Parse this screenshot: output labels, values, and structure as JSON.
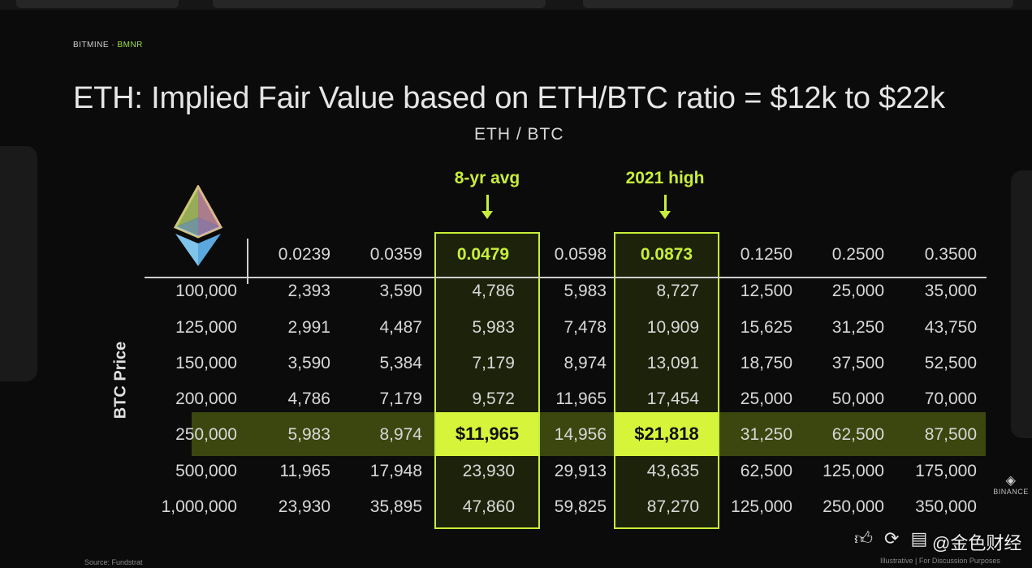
{
  "brand": {
    "company": "BITMINE",
    "separator": " · ",
    "ticker": "BMNR"
  },
  "title": "ETH: Implied Fair Value based on ETH/BTC ratio = $12k to $22k",
  "subtitle": "ETH / BTC",
  "callouts": {
    "left": "8-yr avg",
    "right": "2021 high"
  },
  "y_axis_label": "BTC Price",
  "colors": {
    "accent": "#c9ee3a",
    "row_highlight": "#5f7514",
    "background": "#0b0b0b"
  },
  "table": {
    "ratios": [
      "0.0239",
      "0.0359",
      "0.0479",
      "0.0598",
      "0.0873",
      "0.1250",
      "0.2500",
      "0.3500"
    ],
    "rows": [
      {
        "btc": "100,000",
        "values": [
          "2,393",
          "3,590",
          "4,786",
          "5,983",
          "8,727",
          "12,500",
          "25,000",
          "35,000"
        ]
      },
      {
        "btc": "125,000",
        "values": [
          "2,991",
          "4,487",
          "5,983",
          "7,478",
          "10,909",
          "15,625",
          "31,250",
          "43,750"
        ]
      },
      {
        "btc": "150,000",
        "values": [
          "3,590",
          "5,384",
          "7,179",
          "8,974",
          "13,091",
          "18,750",
          "37,500",
          "52,500"
        ]
      },
      {
        "btc": "200,000",
        "values": [
          "4,786",
          "7,179",
          "9,572",
          "11,965",
          "17,454",
          "25,000",
          "50,000",
          "70,000"
        ]
      },
      {
        "btc": "250,000",
        "values": [
          "5,983",
          "8,974",
          "$11,965",
          "14,956",
          "$21,818",
          "31,250",
          "62,500",
          "87,500"
        ]
      },
      {
        "btc": "500,000",
        "values": [
          "11,965",
          "17,948",
          "23,930",
          "29,913",
          "43,635",
          "62,500",
          "125,000",
          "175,000"
        ]
      },
      {
        "btc": "1,000,000",
        "values": [
          "23,930",
          "35,895",
          "47,860",
          "59,825",
          "87,270",
          "125,000",
          "250,000",
          "350,000"
        ]
      }
    ]
  },
  "icons": [
    "ethereum-logo-icon",
    "binance-icon",
    "thumbs-up-icon",
    "share-icon",
    "comment-icon"
  ],
  "binance_label": "BINANCE",
  "source_text": "Source: Fundstrat",
  "footnote": "Illustrative  |  For Discussion Purposes",
  "watermark": "@金色财经"
}
